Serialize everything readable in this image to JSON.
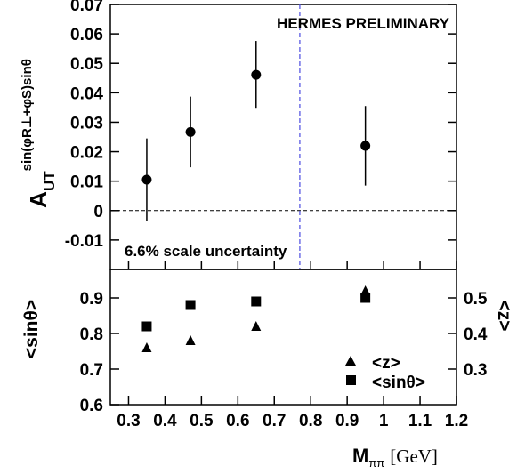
{
  "chart_data": [
    {
      "type": "scatter",
      "panel": "top",
      "title": "",
      "annotation_top": "HERMES PRELIMINARY",
      "annotation_bottom": "6.6% scale uncertainty",
      "ylabel_main": "A",
      "ylabel_sub": "UT",
      "ylabel_sup": "sin(φR⊥+φS)sinθ",
      "xlim": [
        0.25,
        1.2
      ],
      "ylim": [
        -0.02,
        0.07
      ],
      "yticks": [
        -0.01,
        0,
        0.01,
        0.02,
        0.03,
        0.04,
        0.05,
        0.06,
        0.07
      ],
      "ytick_labels": [
        "-0.01",
        "0",
        "0.01",
        "0.02",
        "0.03",
        "0.04",
        "0.05",
        "0.06",
        "0.07"
      ],
      "zero_line": true,
      "vertical_line_x": 0.77,
      "series": [
        {
          "x": [
            0.35,
            0.47,
            0.65,
            0.95
          ],
          "y": [
            0.0105,
            0.0267,
            0.0461,
            0.022
          ],
          "yerr": [
            0.014,
            0.012,
            0.0115,
            0.0135
          ]
        }
      ],
      "colors": {
        "points": "#000000",
        "vline": "#4a4ae0"
      }
    },
    {
      "type": "scatter",
      "panel": "bottom",
      "xlabel_main": "M",
      "xlabel_sub": "ππ",
      "xlabel_unit": "[GeV]",
      "xlim": [
        0.25,
        1.2
      ],
      "xticks": [
        0.3,
        0.4,
        0.5,
        0.6,
        0.7,
        0.8,
        0.9,
        1.0,
        1.1,
        1.2
      ],
      "xtick_labels": [
        "0.3",
        "0.4",
        "0.5",
        "0.6",
        "0.7",
        "0.8",
        "0.9",
        "1",
        "1.1",
        "1.2"
      ],
      "ylabel_left": "<sinθ>",
      "ylim_left": [
        0.6,
        0.98
      ],
      "yticks_left": [
        0.6,
        0.7,
        0.8,
        0.9
      ],
      "ytick_labels_left": [
        "0.6",
        "0.7",
        "0.8",
        "0.9"
      ],
      "ylabel_right": "<z>",
      "ylim_right": [
        0.2,
        0.58
      ],
      "yticks_right": [
        0.3,
        0.4,
        0.5
      ],
      "ytick_labels_right": [
        "0.3",
        "0.4",
        "0.5"
      ],
      "legend_position": "bottom-right",
      "series": [
        {
          "name": "<z>",
          "marker": "triangle",
          "axis": "right",
          "x": [
            0.35,
            0.47,
            0.65,
            0.95
          ],
          "y": [
            0.36,
            0.38,
            0.42,
            0.52
          ]
        },
        {
          "name": "<sinθ>",
          "marker": "square",
          "axis": "left",
          "x": [
            0.35,
            0.47,
            0.65,
            0.95
          ],
          "y": [
            0.82,
            0.88,
            0.89,
            0.9
          ]
        }
      ]
    }
  ]
}
